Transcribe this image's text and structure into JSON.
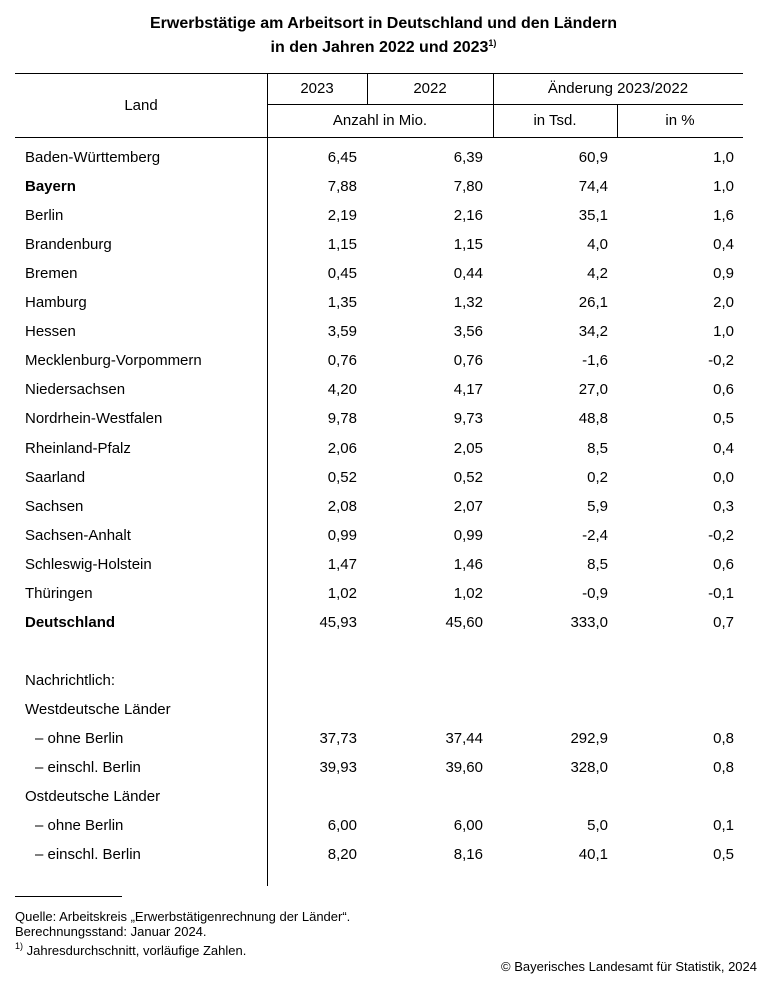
{
  "title": {
    "line1": "Erwerbstätige am Arbeitsort in Deutschland und den Ländern",
    "line2": "in den Jahren 2022 und 2023",
    "note": "1)"
  },
  "header": {
    "land": "Land",
    "col2023": "2023",
    "col2022": "2022",
    "change": "Änderung 2023/2022",
    "unit_abs": "Anzahl in Mio.",
    "unit_tsd": "in Tsd.",
    "unit_pct": "in %"
  },
  "rows": [
    {
      "label": "Baden-Württemberg",
      "values": [
        "6,45",
        "6,39",
        "60,9",
        "1,0"
      ]
    },
    {
      "label": "Bayern",
      "values": [
        "7,88",
        "7,80",
        "74,4",
        "1,0"
      ],
      "bold": true
    },
    {
      "label": "Berlin",
      "values": [
        "2,19",
        "2,16",
        "35,1",
        "1,6"
      ]
    },
    {
      "label": "Brandenburg",
      "values": [
        "1,15",
        "1,15",
        "4,0",
        "0,4"
      ]
    },
    {
      "label": "Bremen",
      "values": [
        "0,45",
        "0,44",
        "4,2",
        "0,9"
      ]
    },
    {
      "label": "Hamburg",
      "values": [
        "1,35",
        "1,32",
        "26,1",
        "2,0"
      ]
    },
    {
      "label": "Hessen",
      "values": [
        "3,59",
        "3,56",
        "34,2",
        "1,0"
      ]
    },
    {
      "label": "Mecklenburg-Vorpommern",
      "values": [
        "0,76",
        "0,76",
        "-1,6",
        "-0,2"
      ]
    },
    {
      "label": "Niedersachsen",
      "values": [
        "4,20",
        "4,17",
        "27,0",
        "0,6"
      ]
    },
    {
      "label": "Nordrhein-Westfalen",
      "values": [
        "9,78",
        "9,73",
        "48,8",
        "0,5"
      ]
    },
    {
      "label": "Rheinland-Pfalz",
      "values": [
        "2,06",
        "2,05",
        "8,5",
        "0,4"
      ]
    },
    {
      "label": "Saarland",
      "values": [
        "0,52",
        "0,52",
        "0,2",
        "0,0"
      ]
    },
    {
      "label": "Sachsen",
      "values": [
        "2,08",
        "2,07",
        "5,9",
        "0,3"
      ]
    },
    {
      "label": "Sachsen-Anhalt",
      "values": [
        "0,99",
        "0,99",
        "-2,4",
        "-0,2"
      ]
    },
    {
      "label": "Schleswig-Holstein",
      "values": [
        "1,47",
        "1,46",
        "8,5",
        "0,6"
      ]
    },
    {
      "label": "Thüringen",
      "values": [
        "1,02",
        "1,02",
        "-0,9",
        "-0,1"
      ]
    },
    {
      "label": "Deutschland",
      "values": [
        "45,93",
        "45,60",
        "333,0",
        "0,7"
      ],
      "bold": true
    }
  ],
  "memo": {
    "label": "Nachrichtlich:",
    "rows": [
      {
        "label": "Westdeutsche Länder"
      },
      {
        "label": "– ohne Berlin",
        "values": [
          "37,73",
          "37,44",
          "292,9",
          "0,8"
        ],
        "indent": true
      },
      {
        "label": "– einschl. Berlin",
        "values": [
          "39,93",
          "39,60",
          "328,0",
          "0,8"
        ],
        "indent": true
      },
      {
        "label": "Ostdeutsche Länder"
      },
      {
        "label": "– ohne Berlin",
        "values": [
          "6,00",
          "6,00",
          "5,0",
          "0,1"
        ],
        "indent": true
      },
      {
        "label": "– einschl. Berlin",
        "values": [
          "8,20",
          "8,16",
          "40,1",
          "0,5"
        ],
        "indent": true
      }
    ]
  },
  "footer": {
    "source": "Quelle: Arbeitskreis „Erwerbstätigenrechnung der Länder“.",
    "status": "Berechnungsstand: Januar 2024.",
    "note_mark": "1)",
    "note": "Jahresdurchschnitt, vorläufige Zahlen.",
    "copyright": "© Bayerisches Landesamt für Statistik, 2024"
  }
}
